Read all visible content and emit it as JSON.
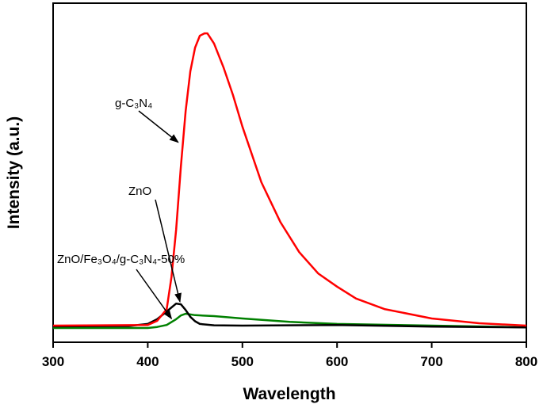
{
  "chart_data": {
    "type": "line",
    "title": "",
    "xlabel": "Wavelength",
    "ylabel": "Intensity (a.u.)",
    "xlim": [
      300,
      800
    ],
    "ylim": [
      0,
      100
    ],
    "xticks": [
      300,
      400,
      500,
      600,
      700,
      800
    ],
    "yticks": [],
    "grid": false,
    "legend": "none",
    "series": [
      {
        "name": "g-C₃N₄",
        "color": "#ff0000",
        "x": [
          300,
          400,
          410,
          420,
          425,
          430,
          435,
          440,
          445,
          450,
          455,
          460,
          463,
          470,
          480,
          490,
          500,
          520,
          540,
          560,
          580,
          600,
          620,
          650,
          700,
          750,
          800
        ],
        "y": [
          4.9,
          5.1,
          6.3,
          9.8,
          19.2,
          33.2,
          51.9,
          68.2,
          79.9,
          86.9,
          90.4,
          91.1,
          91.1,
          88.1,
          81.1,
          72.9,
          63.6,
          47.2,
          35.5,
          26.6,
          20.3,
          16.4,
          12.9,
          9.8,
          7.0,
          5.6,
          4.9
        ]
      },
      {
        "name": "ZnO",
        "color": "#000000",
        "x": [
          300,
          380,
          400,
          410,
          420,
          430,
          435,
          440,
          445,
          450,
          455,
          470,
          500,
          600,
          700,
          800
        ],
        "y": [
          4.7,
          4.8,
          5.4,
          6.8,
          9.1,
          11.4,
          11.2,
          9.5,
          7.5,
          6.2,
          5.4,
          5.0,
          4.9,
          5.1,
          4.6,
          4.4
        ]
      },
      {
        "name": "ZnO/Fe₃O₄/g-C₃N₄-50%",
        "color": "#008000",
        "x": [
          300,
          400,
          410,
          420,
          430,
          435,
          440,
          450,
          470,
          500,
          550,
          600,
          700,
          800
        ],
        "y": [
          4.2,
          4.2,
          4.5,
          5.1,
          6.8,
          7.9,
          8.4,
          8.0,
          7.7,
          7.0,
          6.0,
          5.4,
          4.9,
          4.4
        ]
      }
    ],
    "annotations": [
      {
        "text": "g-C₃N₄",
        "target_x": 432,
        "target_y": 59
      },
      {
        "text": "ZnO",
        "target_x": 434,
        "target_y": 12
      },
      {
        "text": "ZnO/Fe₃O₄/g-C₃N₄-50%",
        "target_x": 425,
        "target_y": 7
      }
    ]
  }
}
